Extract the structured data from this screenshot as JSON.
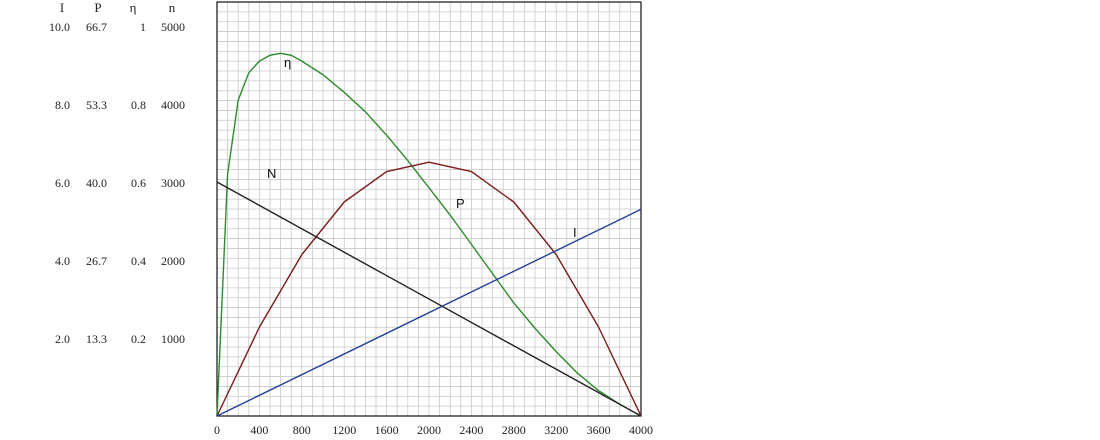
{
  "chart_data": {
    "type": "line",
    "left_axis_headers": [
      "I",
      "P",
      "η",
      "n"
    ],
    "left_axis_rows": [
      {
        "I": "10.0",
        "P": "66.7",
        "eta": "1",
        "n": "5000"
      },
      {
        "I": "8.0",
        "P": "53.3",
        "eta": "0.8",
        "n": "4000"
      },
      {
        "I": "6.0",
        "P": "40.0",
        "eta": "0.6",
        "n": "3000"
      },
      {
        "I": "4.0",
        "P": "26.7",
        "eta": "0.4",
        "n": "2000"
      },
      {
        "I": "2.0",
        "P": "13.3",
        "eta": "0.2",
        "n": "1000"
      }
    ],
    "x_ticks": [
      "0",
      "400",
      "800",
      "1200",
      "1600",
      "2000",
      "2400",
      "2800",
      "3200",
      "3600",
      "4000"
    ],
    "xlim": [
      0,
      4000
    ],
    "n_axis_ylim": [
      0,
      5000
    ],
    "grid": true,
    "series": [
      {
        "name": "η",
        "color": "#2e8b2e",
        "y_axis": "eta",
        "points": [
          [
            0,
            0
          ],
          [
            100,
            0.62
          ],
          [
            200,
            0.81
          ],
          [
            300,
            0.88
          ],
          [
            400,
            0.91
          ],
          [
            500,
            0.925
          ],
          [
            600,
            0.93
          ],
          [
            700,
            0.925
          ],
          [
            800,
            0.91
          ],
          [
            1000,
            0.875
          ],
          [
            1200,
            0.83
          ],
          [
            1400,
            0.78
          ],
          [
            1600,
            0.72
          ],
          [
            1800,
            0.655
          ],
          [
            2000,
            0.585
          ],
          [
            2200,
            0.515
          ],
          [
            2400,
            0.44
          ],
          [
            2600,
            0.365
          ],
          [
            2800,
            0.29
          ],
          [
            3000,
            0.225
          ],
          [
            3200,
            0.165
          ],
          [
            3400,
            0.11
          ],
          [
            3600,
            0.065
          ],
          [
            3800,
            0.03
          ],
          [
            4000,
            0
          ]
        ]
      },
      {
        "name": "P",
        "color": "#7b1c1c",
        "y_axis": "P",
        "points": [
          [
            0,
            0
          ],
          [
            400,
            15.2
          ],
          [
            800,
            27.6
          ],
          [
            1200,
            36.6
          ],
          [
            1600,
            41.8
          ],
          [
            2000,
            43.4
          ],
          [
            2400,
            41.8
          ],
          [
            2800,
            36.6
          ],
          [
            3200,
            27.6
          ],
          [
            3600,
            15.2
          ],
          [
            4000,
            0
          ]
        ]
      },
      {
        "name": "N",
        "color": "#222222",
        "y_axis": "n",
        "points": [
          [
            0,
            3000
          ],
          [
            4000,
            0
          ]
        ]
      },
      {
        "name": "I",
        "color": "#1f3f9a",
        "y_axis": "I",
        "points": [
          [
            0,
            0
          ],
          [
            4000,
            5.3
          ]
        ]
      }
    ]
  }
}
